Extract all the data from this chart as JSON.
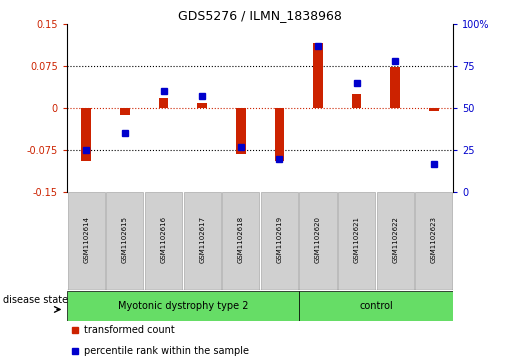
{
  "title": "GDS5276 / ILMN_1838968",
  "samples": [
    "GSM1102614",
    "GSM1102615",
    "GSM1102616",
    "GSM1102617",
    "GSM1102618",
    "GSM1102619",
    "GSM1102620",
    "GSM1102621",
    "GSM1102622",
    "GSM1102623"
  ],
  "transformed_count": [
    -0.095,
    -0.012,
    0.018,
    0.008,
    -0.082,
    -0.095,
    0.115,
    0.025,
    0.072,
    -0.005
  ],
  "percentile_rank": [
    25,
    35,
    60,
    57,
    27,
    20,
    87,
    65,
    78,
    17
  ],
  "group_labels": [
    "Myotonic dystrophy type 2",
    "control"
  ],
  "group_col_ranges": [
    [
      0,
      5
    ],
    [
      6,
      9
    ]
  ],
  "bar_color": "#CC2200",
  "dot_color": "#0000CC",
  "ylim_left": [
    -0.15,
    0.15
  ],
  "ylim_right": [
    0,
    100
  ],
  "yticks_left": [
    -0.15,
    -0.075,
    0,
    0.075,
    0.15
  ],
  "ytick_labels_left": [
    "-0.15",
    "-0.075",
    "0",
    "0.075",
    "0.15"
  ],
  "yticks_right": [
    0,
    25,
    50,
    75,
    100
  ],
  "ytick_labels_right": [
    "0",
    "25",
    "50",
    "75",
    "100%"
  ],
  "legend_items": [
    {
      "color": "#CC2200",
      "label": "transformed count"
    },
    {
      "color": "#0000CC",
      "label": "percentile rank within the sample"
    }
  ],
  "disease_state_label": "disease state",
  "green_color": "#66DD66",
  "label_bg_color": "#d0d0d0",
  "label_border_color": "#aaaaaa"
}
